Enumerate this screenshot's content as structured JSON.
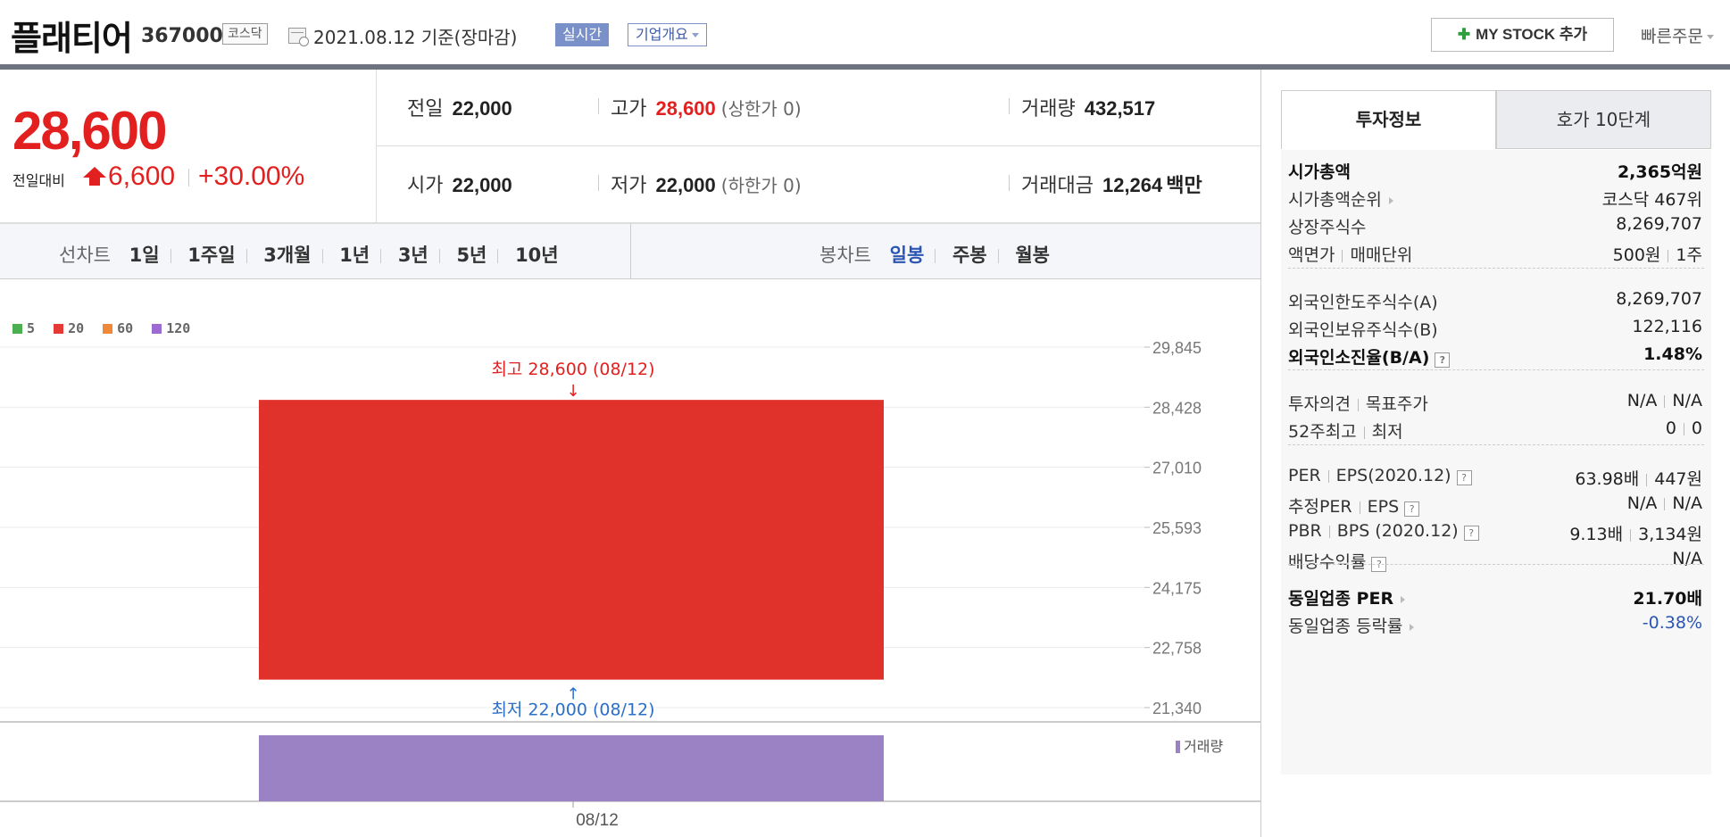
{
  "header": {
    "name": "플래티어",
    "code": "367000",
    "market": "코스닥",
    "base_date": "2021.08.12  기준(장마감)",
    "realtime": "실시간",
    "overview": "기업개요",
    "mystock": "MY STOCK 추가",
    "quick_order": "빠른주문"
  },
  "price": {
    "current": "28,600",
    "change_label": "전일대비",
    "change": "6,600",
    "change_pct": "+30.00%"
  },
  "stats": {
    "prev_label": "전일",
    "prev": "22,000",
    "high_label": "고가",
    "high": "28,600",
    "high_sub": "(상한가 0)",
    "volume_label": "거래량",
    "volume": "432,517",
    "open_label": "시가",
    "open": "22,000",
    "low_label": "저가",
    "low": "22,000",
    "low_sub": "(하한가 0)",
    "amount_label": "거래대금",
    "amount": "12,264",
    "amount_unit": "백만"
  },
  "chart_tabs": {
    "line_label": "선차트",
    "line_items": [
      "1일",
      "1주일",
      "3개월",
      "1년",
      "3년",
      "5년",
      "10년"
    ],
    "candle_label": "봉차트",
    "candle_items": [
      "일봉",
      "주봉",
      "월봉"
    ],
    "candle_active": 0
  },
  "chart_data": {
    "type": "candlestick",
    "legend": [
      {
        "name": "5",
        "color": "#4caf50"
      },
      {
        "name": "20",
        "color": "#e53935"
      },
      {
        "name": "60",
        "color": "#f0883a"
      },
      {
        "name": "120",
        "color": "#9c6ad0"
      }
    ],
    "y_ticks": [
      "29,845",
      "28,428",
      "27,010",
      "25,593",
      "24,175",
      "22,758",
      "21,340"
    ],
    "ylim": [
      21340,
      29845
    ],
    "candles": [
      {
        "date": "08/12",
        "open": 22000,
        "high": 28600,
        "low": 22000,
        "close": 28600
      }
    ],
    "x_labels": [
      "08/12"
    ],
    "max_annotation": "최고 28,600 (08/12)",
    "min_annotation": "최저 22,000 (08/12)",
    "volume_label": "거래량",
    "volume": [
      432517
    ],
    "colors": {
      "up": "#e0312b",
      "max_text": "#e22020",
      "min_text": "#2b6fc8",
      "volume": "#9b82c4"
    }
  },
  "right_panel": {
    "tabs": [
      "투자정보",
      "호가 10단계"
    ],
    "groups": [
      [
        {
          "k": "시가총액",
          "v": "2,365억원",
          "kb": true,
          "vb": true
        },
        {
          "k": "시가총액순위",
          "v": "코스닥 467위",
          "arrow": true
        },
        {
          "k": "상장주식수",
          "v": "8,269,707"
        },
        {
          "k": "액면가",
          "k2": "매매단위",
          "v": "500원",
          "v2": "1주"
        }
      ],
      [
        {
          "k": "외국인한도주식수(A)",
          "v": "8,269,707"
        },
        {
          "k": "외국인보유주식수(B)",
          "v": "122,116"
        },
        {
          "k": "외국인소진율(B/A)",
          "v": "1.48%",
          "kb": true,
          "vb": true,
          "q": true
        }
      ],
      [
        {
          "k": "투자의견",
          "k2": "목표주가",
          "v": "N/A",
          "v2": "N/A"
        },
        {
          "k": "52주최고",
          "k2": "최저",
          "v": "0",
          "v2": "0"
        }
      ],
      [
        {
          "k": "PER",
          "k2": "EPS(2020.12)",
          "v": "63.98배",
          "v2": "447원",
          "q": true
        },
        {
          "k": "추정PER",
          "k2": "EPS",
          "v": "N/A",
          "v2": "N/A",
          "q": true
        },
        {
          "k": "PBR",
          "k2": "BPS (2020.12)",
          "v": "9.13배",
          "v2": "3,134원",
          "q": true
        },
        {
          "k": "배당수익률",
          "v": "N/A",
          "q": true
        }
      ],
      [
        {
          "k": "동일업종 PER",
          "v": "21.70배",
          "kb": true,
          "vb": true,
          "arrow": true
        },
        {
          "k": "동일업종 등락률",
          "v": "-0.38%",
          "arrow": true,
          "blue": true
        }
      ]
    ]
  }
}
